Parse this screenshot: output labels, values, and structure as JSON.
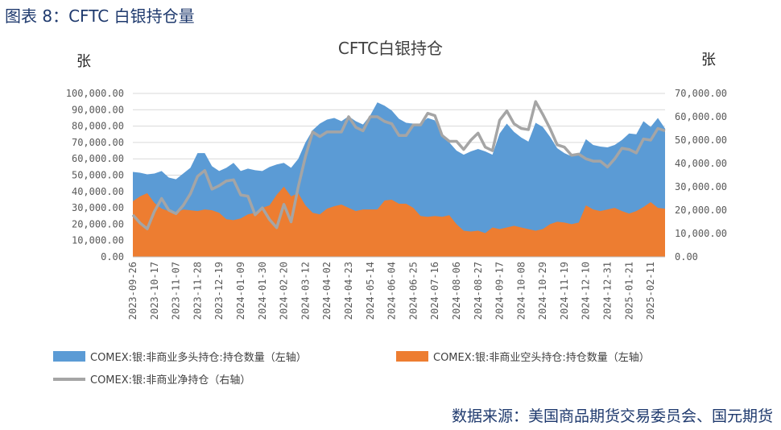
{
  "figure_title": "图表 8：CFTC 白银持仓量",
  "source_note": "数据来源：美国商品期货交易委员会、国元期货",
  "chart_data": {
    "type": "area",
    "title": "CFTC白银持仓",
    "ylabel_left": "张",
    "ylabel_right": "张",
    "ylim_left": [
      0,
      100000
    ],
    "ylim_right": [
      0,
      70000
    ],
    "yticks_left": [
      "0.00",
      "10,000.00",
      "20,000.00",
      "30,000.00",
      "40,000.00",
      "50,000.00",
      "60,000.00",
      "70,000.00",
      "80,000.00",
      "90,000.00",
      "100,000.00"
    ],
    "yticks_right": [
      "0.00",
      "10,000.00",
      "20,000.00",
      "30,000.00",
      "40,000.00",
      "50,000.00",
      "60,000.00",
      "70,000.00"
    ],
    "xtick_labels": [
      "2023-09-26",
      "2023-10-17",
      "2023-11-07",
      "2023-11-28",
      "2023-12-19",
      "2024-01-09",
      "2024-01-30",
      "2024-02-20",
      "2024-03-12",
      "2024-04-02",
      "2024-04-23",
      "2024-05-14",
      "2024-06-04",
      "2024-06-25",
      "2024-07-16",
      "2024-08-06",
      "2024-08-27",
      "2024-09-17",
      "2024-10-08",
      "2024-10-29",
      "2024-11-19",
      "2024-12-10",
      "2024-12-31",
      "2025-01-21",
      "2025-02-11"
    ],
    "legend_position": "bottom",
    "series": [
      {
        "name": "COMEX:银:非商业多头持仓:持仓数量（左轴）",
        "axis": "left",
        "kind": "area",
        "color": "#5B9BD5",
        "values": [
          52000,
          51500,
          50500,
          51000,
          52500,
          48500,
          47500,
          51000,
          54500,
          63500,
          63500,
          55500,
          52500,
          54500,
          57500,
          52500,
          54000,
          53000,
          52500,
          55000,
          56500,
          57500,
          54500,
          60000,
          70000,
          77500,
          81500,
          84000,
          85000,
          83000,
          86000,
          83000,
          81000,
          86500,
          94500,
          92500,
          89500,
          84500,
          82000,
          81500,
          81500,
          85000,
          83500,
          74000,
          70000,
          65000,
          62500,
          64500,
          66000,
          64500,
          62500,
          75500,
          81500,
          76500,
          73000,
          70500,
          82000,
          79500,
          73500,
          66500,
          63500,
          61500,
          62500,
          72000,
          68500,
          67500,
          67000,
          68500,
          71500,
          75500,
          75000,
          83000,
          79500,
          85000,
          78500
        ]
      },
      {
        "name": "COMEX:银:非商业空头持仓:持仓数量（左轴）",
        "axis": "left",
        "kind": "area",
        "color": "#ED7D31",
        "values": [
          34000,
          37000,
          39000,
          33000,
          29500,
          28000,
          27000,
          29000,
          28500,
          28000,
          29000,
          28500,
          27000,
          23000,
          22500,
          23500,
          26000,
          27000,
          30000,
          31500,
          38000,
          43000,
          37000,
          39000,
          31500,
          27000,
          26000,
          29500,
          31000,
          32000,
          30000,
          28000,
          29000,
          29000,
          29000,
          34500,
          35000,
          32500,
          32500,
          30000,
          25000,
          24500,
          25000,
          24500,
          25500,
          20000,
          16000,
          15500,
          16000,
          14500,
          18000,
          17000,
          18000,
          19000,
          18000,
          17000,
          16000,
          17000,
          20000,
          21500,
          21000,
          20000,
          21000,
          31500,
          29000,
          28000,
          29000,
          30000,
          28000,
          26500,
          28000,
          30500,
          33500,
          30000,
          29500
        ]
      },
      {
        "name": "COMEX:银:非商业净持仓（右轴）",
        "axis": "right",
        "kind": "line",
        "color": "#A5A5A5",
        "values": [
          18000,
          14500,
          12000,
          19500,
          25000,
          20000,
          18500,
          22000,
          27000,
          34500,
          37000,
          29000,
          30500,
          32500,
          33000,
          26500,
          26000,
          18000,
          21000,
          16000,
          12500,
          22500,
          15000,
          30000,
          43000,
          53500,
          51500,
          53500,
          53500,
          53500,
          60000,
          55500,
          54000,
          60000,
          60000,
          58000,
          57000,
          52000,
          52000,
          56500,
          56500,
          61500,
          60500,
          52000,
          49500,
          49500,
          46000,
          50000,
          53000,
          47000,
          45500,
          58500,
          62500,
          57000,
          55000,
          54500,
          66500,
          61000,
          55000,
          48000,
          47000,
          43500,
          44000,
          42000,
          41000,
          41000,
          38500,
          42000,
          46500,
          46000,
          44500,
          50500,
          50000,
          55000,
          54000
        ]
      }
    ]
  }
}
